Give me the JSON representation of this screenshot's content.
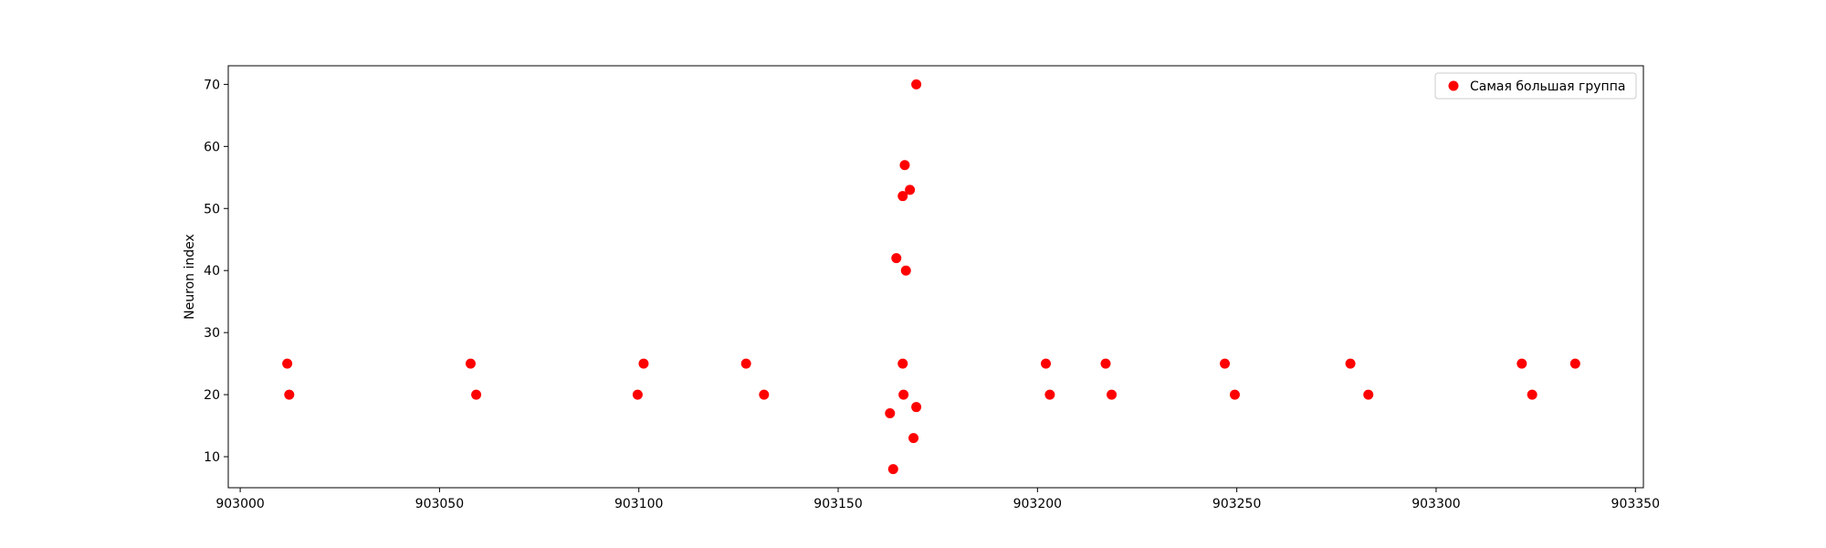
{
  "chart_data": {
    "type": "scatter",
    "title": "",
    "xlabel": "",
    "ylabel": "Neuron index",
    "xlim": [
      902997,
      903352
    ],
    "ylim": [
      5,
      73
    ],
    "xticks": [
      903000,
      903050,
      903100,
      903150,
      903200,
      903250,
      903300,
      903350
    ],
    "yticks": [
      10,
      20,
      30,
      40,
      50,
      60,
      70
    ],
    "grid": false,
    "legend_position": "top-right",
    "series": [
      {
        "name": "Самая большая группа",
        "color": "#ff0000",
        "marker": "circle",
        "points": [
          {
            "x": 903011.8,
            "y": 25
          },
          {
            "x": 903012.3,
            "y": 20
          },
          {
            "x": 903057.8,
            "y": 25
          },
          {
            "x": 903059.2,
            "y": 20
          },
          {
            "x": 903099.7,
            "y": 20
          },
          {
            "x": 903101.2,
            "y": 25
          },
          {
            "x": 903126.9,
            "y": 25
          },
          {
            "x": 903131.4,
            "y": 20
          },
          {
            "x": 903163.0,
            "y": 17
          },
          {
            "x": 903163.8,
            "y": 8
          },
          {
            "x": 903164.6,
            "y": 42
          },
          {
            "x": 903166.2,
            "y": 52
          },
          {
            "x": 903166.2,
            "y": 25
          },
          {
            "x": 903166.4,
            "y": 20
          },
          {
            "x": 903166.7,
            "y": 57
          },
          {
            "x": 903167.0,
            "y": 40
          },
          {
            "x": 903168.0,
            "y": 53
          },
          {
            "x": 903168.9,
            "y": 13
          },
          {
            "x": 903169.6,
            "y": 18
          },
          {
            "x": 903169.6,
            "y": 70
          },
          {
            "x": 903202.1,
            "y": 25
          },
          {
            "x": 903203.1,
            "y": 20
          },
          {
            "x": 903217.1,
            "y": 25
          },
          {
            "x": 903218.6,
            "y": 20
          },
          {
            "x": 903247.0,
            "y": 25
          },
          {
            "x": 903249.5,
            "y": 20
          },
          {
            "x": 903278.5,
            "y": 25
          },
          {
            "x": 903283.0,
            "y": 20
          },
          {
            "x": 903321.5,
            "y": 25
          },
          {
            "x": 903324.1,
            "y": 20
          },
          {
            "x": 903334.9,
            "y": 25
          }
        ]
      }
    ]
  }
}
